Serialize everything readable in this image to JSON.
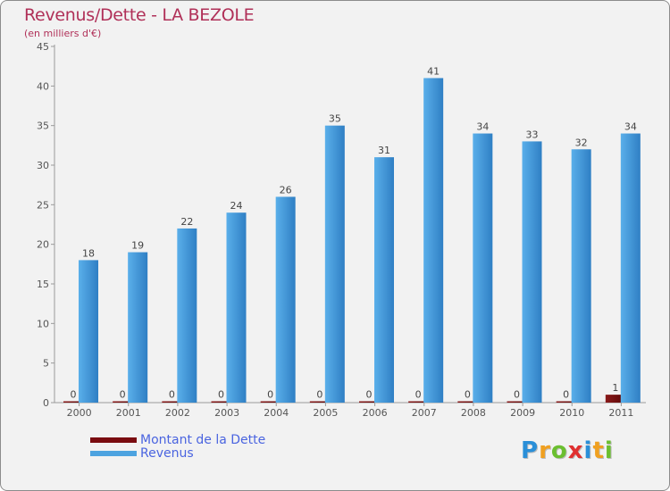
{
  "header": {
    "title": "Revenus/Dette - LA BEZOLE",
    "subtitle": "(en milliers d'€)"
  },
  "chart_data": {
    "type": "bar",
    "categories": [
      "2000",
      "2001",
      "2002",
      "2003",
      "2004",
      "2005",
      "2006",
      "2007",
      "2008",
      "2009",
      "2010",
      "2011"
    ],
    "series": [
      {
        "name": "Montant de la Dette",
        "color": "#7a0c10",
        "values": [
          0,
          0,
          0,
          0,
          0,
          0,
          0,
          0,
          0,
          0,
          0,
          1
        ]
      },
      {
        "name": "Revenus",
        "color": "#4da3e0",
        "values": [
          18,
          19,
          22,
          24,
          26,
          35,
          31,
          41,
          34,
          33,
          32,
          34
        ]
      }
    ],
    "ylim": [
      0,
      45
    ],
    "yticks": [
      0,
      5,
      10,
      15,
      20,
      25,
      30,
      35,
      40,
      45
    ],
    "grid": false,
    "legend": "bottom-left"
  },
  "legend": {
    "items": [
      {
        "label": "Montant de la Dette",
        "color": "#7a0c10"
      },
      {
        "label": "Revenus",
        "color": "#4da3e0"
      }
    ]
  },
  "logo": {
    "letters": [
      "P",
      "r",
      "o",
      "x",
      "i",
      "t",
      "i"
    ],
    "colors": [
      "#2a8fd8",
      "#f0a020",
      "#6bbf30",
      "#e03030",
      "#2a8fd8",
      "#f0a020",
      "#6bbf30"
    ]
  }
}
